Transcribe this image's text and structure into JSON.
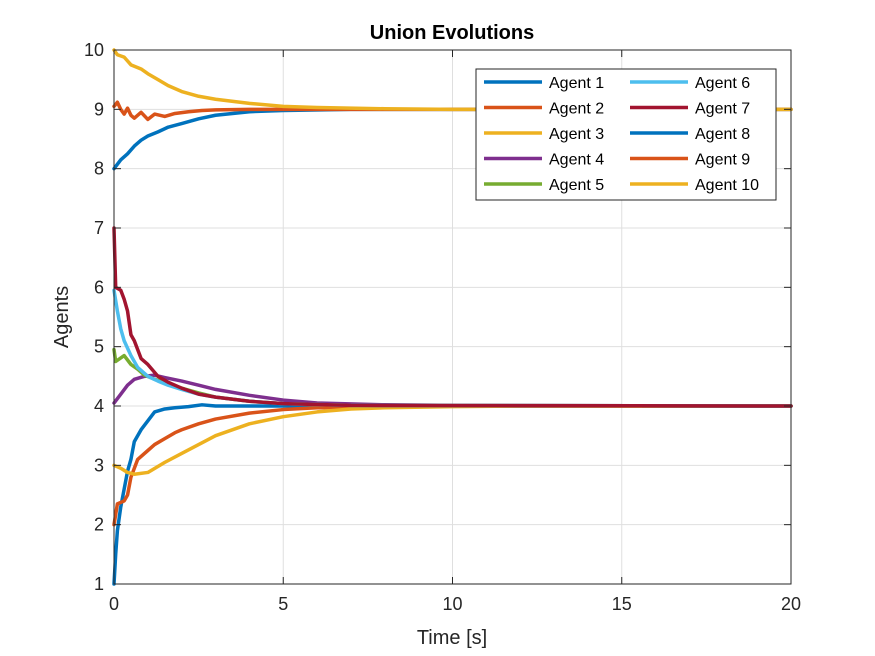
{
  "chart_data": {
    "type": "line",
    "title": "Union Evolutions",
    "xlabel": "Time [s]",
    "ylabel": "Agents",
    "xlim": [
      0,
      20
    ],
    "ylim": [
      1,
      10
    ],
    "xticks": [
      0,
      5,
      10,
      15,
      20
    ],
    "yticks": [
      1,
      2,
      3,
      4,
      5,
      6,
      7,
      8,
      9,
      10
    ],
    "grid": true,
    "legend_position": "top-right",
    "legend_columns": 2,
    "series": [
      {
        "name": "Agent 1",
        "color": "#0072BD",
        "points": [
          [
            0,
            1
          ],
          [
            0.05,
            1.5
          ],
          [
            0.1,
            1.9
          ],
          [
            0.2,
            2.3
          ],
          [
            0.3,
            2.6
          ],
          [
            0.4,
            2.9
          ],
          [
            0.5,
            3.1
          ],
          [
            0.6,
            3.4
          ],
          [
            0.8,
            3.6
          ],
          [
            1.0,
            3.75
          ],
          [
            1.2,
            3.9
          ],
          [
            1.5,
            3.95
          ],
          [
            1.8,
            3.97
          ],
          [
            2.2,
            3.99
          ],
          [
            2.6,
            4.02
          ],
          [
            3.0,
            4.0
          ],
          [
            4.0,
            4.0
          ],
          [
            6.0,
            4.0
          ],
          [
            20,
            4.0
          ]
        ]
      },
      {
        "name": "Agent 2",
        "color": "#D95319",
        "points": [
          [
            0,
            2.0
          ],
          [
            0.1,
            2.35
          ],
          [
            0.3,
            2.4
          ],
          [
            0.4,
            2.5
          ],
          [
            0.5,
            2.8
          ],
          [
            0.7,
            3.1
          ],
          [
            1.0,
            3.25
          ],
          [
            1.2,
            3.35
          ],
          [
            1.5,
            3.45
          ],
          [
            1.8,
            3.55
          ],
          [
            2.0,
            3.6
          ],
          [
            2.5,
            3.7
          ],
          [
            3.0,
            3.78
          ],
          [
            4.0,
            3.88
          ],
          [
            5.0,
            3.94
          ],
          [
            6.0,
            3.97
          ],
          [
            8.0,
            3.99
          ],
          [
            10.0,
            4.0
          ],
          [
            20,
            4.0
          ]
        ]
      },
      {
        "name": "Agent 3",
        "color": "#EDB120",
        "points": [
          [
            0,
            3.0
          ],
          [
            0.2,
            2.95
          ],
          [
            0.4,
            2.88
          ],
          [
            0.6,
            2.85
          ],
          [
            1.0,
            2.88
          ],
          [
            1.5,
            3.05
          ],
          [
            2.0,
            3.2
          ],
          [
            2.5,
            3.35
          ],
          [
            3.0,
            3.5
          ],
          [
            4.0,
            3.7
          ],
          [
            5.0,
            3.82
          ],
          [
            6.0,
            3.9
          ],
          [
            7.0,
            3.95
          ],
          [
            8.0,
            3.97
          ],
          [
            10.0,
            3.99
          ],
          [
            12.0,
            4.0
          ],
          [
            20,
            4.0
          ]
        ]
      },
      {
        "name": "Agent 4",
        "color": "#7E2F8E",
        "points": [
          [
            0,
            4.05
          ],
          [
            0.2,
            4.2
          ],
          [
            0.4,
            4.35
          ],
          [
            0.6,
            4.45
          ],
          [
            0.9,
            4.5
          ],
          [
            1.2,
            4.52
          ],
          [
            1.5,
            4.48
          ],
          [
            2.0,
            4.42
          ],
          [
            2.5,
            4.35
          ],
          [
            3.0,
            4.28
          ],
          [
            4.0,
            4.18
          ],
          [
            5.0,
            4.1
          ],
          [
            6.0,
            4.05
          ],
          [
            8.0,
            4.02
          ],
          [
            10.0,
            4.01
          ],
          [
            20,
            4.0
          ]
        ]
      },
      {
        "name": "Agent 5",
        "color": "#77AC30",
        "points": [
          [
            0,
            4.95
          ],
          [
            0.05,
            4.75
          ],
          [
            0.3,
            4.85
          ],
          [
            0.5,
            4.7
          ],
          [
            0.7,
            4.62
          ],
          [
            0.9,
            4.52
          ],
          [
            1.2,
            4.45
          ],
          [
            1.5,
            4.4
          ],
          [
            2.0,
            4.3
          ],
          [
            2.5,
            4.22
          ],
          [
            3.0,
            4.15
          ],
          [
            4.0,
            4.08
          ],
          [
            5.0,
            4.04
          ],
          [
            7.0,
            4.01
          ],
          [
            20,
            4.0
          ]
        ]
      },
      {
        "name": "Agent 6",
        "color": "#4DBEEE",
        "points": [
          [
            0,
            5.95
          ],
          [
            0.1,
            5.6
          ],
          [
            0.2,
            5.3
          ],
          [
            0.3,
            5.1
          ],
          [
            0.5,
            4.85
          ],
          [
            0.7,
            4.65
          ],
          [
            1.0,
            4.5
          ],
          [
            1.3,
            4.42
          ],
          [
            1.6,
            4.35
          ],
          [
            2.0,
            4.28
          ],
          [
            2.5,
            4.2
          ],
          [
            3.0,
            4.15
          ],
          [
            4.0,
            4.08
          ],
          [
            5.0,
            4.04
          ],
          [
            7.0,
            4.01
          ],
          [
            20,
            4.0
          ]
        ]
      },
      {
        "name": "Agent 7",
        "color": "#A2142F",
        "points": [
          [
            0,
            7.0
          ],
          [
            0.05,
            6.0
          ],
          [
            0.2,
            5.95
          ],
          [
            0.3,
            5.8
          ],
          [
            0.4,
            5.6
          ],
          [
            0.5,
            5.2
          ],
          [
            0.6,
            5.1
          ],
          [
            0.8,
            4.8
          ],
          [
            1.0,
            4.7
          ],
          [
            1.3,
            4.5
          ],
          [
            1.6,
            4.4
          ],
          [
            2.0,
            4.3
          ],
          [
            2.5,
            4.2
          ],
          [
            3.0,
            4.15
          ],
          [
            4.0,
            4.08
          ],
          [
            5.0,
            4.04
          ],
          [
            7.0,
            4.01
          ],
          [
            20,
            4.0
          ]
        ]
      },
      {
        "name": "Agent 8",
        "color": "#0072BD",
        "points": [
          [
            0,
            8.0
          ],
          [
            0.2,
            8.15
          ],
          [
            0.4,
            8.25
          ],
          [
            0.6,
            8.38
          ],
          [
            0.8,
            8.48
          ],
          [
            1.0,
            8.55
          ],
          [
            1.3,
            8.62
          ],
          [
            1.6,
            8.7
          ],
          [
            2.0,
            8.76
          ],
          [
            2.5,
            8.84
          ],
          [
            3.0,
            8.9
          ],
          [
            4.0,
            8.96
          ],
          [
            5.0,
            8.98
          ],
          [
            7.0,
            9.0
          ],
          [
            20,
            9.0
          ]
        ]
      },
      {
        "name": "Agent 9",
        "color": "#D95319",
        "points": [
          [
            0,
            9.05
          ],
          [
            0.1,
            9.12
          ],
          [
            0.2,
            9.0
          ],
          [
            0.3,
            8.92
          ],
          [
            0.4,
            9.02
          ],
          [
            0.5,
            8.9
          ],
          [
            0.6,
            8.85
          ],
          [
            0.8,
            8.95
          ],
          [
            1.0,
            8.83
          ],
          [
            1.2,
            8.92
          ],
          [
            1.5,
            8.88
          ],
          [
            1.8,
            8.93
          ],
          [
            2.2,
            8.96
          ],
          [
            2.6,
            8.98
          ],
          [
            3.0,
            8.99
          ],
          [
            4.0,
            9.0
          ],
          [
            20,
            9.0
          ]
        ]
      },
      {
        "name": "Agent 10",
        "color": "#EDB120",
        "points": [
          [
            0,
            10.0
          ],
          [
            0.1,
            9.92
          ],
          [
            0.3,
            9.88
          ],
          [
            0.5,
            9.75
          ],
          [
            0.8,
            9.68
          ],
          [
            1.0,
            9.6
          ],
          [
            1.3,
            9.5
          ],
          [
            1.6,
            9.4
          ],
          [
            2.0,
            9.3
          ],
          [
            2.5,
            9.22
          ],
          [
            3.0,
            9.17
          ],
          [
            4.0,
            9.1
          ],
          [
            5.0,
            9.05
          ],
          [
            6.0,
            9.03
          ],
          [
            8.0,
            9.01
          ],
          [
            10.0,
            9.0
          ],
          [
            20,
            9.0
          ]
        ]
      }
    ]
  }
}
